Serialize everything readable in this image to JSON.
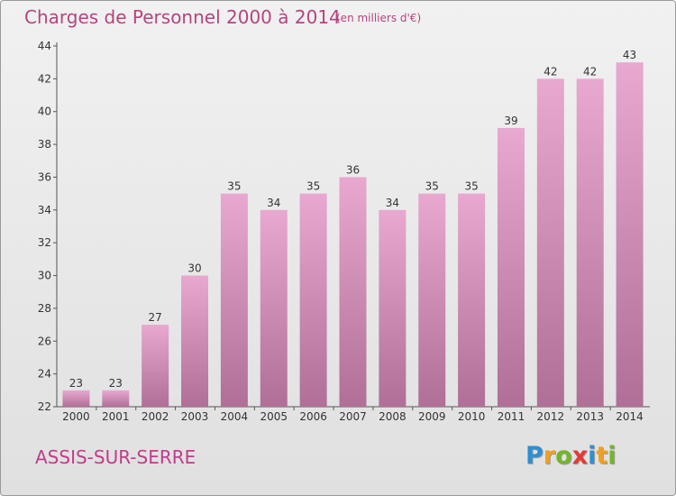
{
  "chart_data": {
    "type": "bar",
    "title": "Charges de Personnel 2000 à 2014",
    "subtitle": "(en milliers d'€)",
    "categories": [
      "2000",
      "2001",
      "2002",
      "2003",
      "2004",
      "2005",
      "2006",
      "2007",
      "2008",
      "2009",
      "2010",
      "2011",
      "2012",
      "2013",
      "2014"
    ],
    "values": [
      23,
      23,
      27,
      30,
      35,
      34,
      35,
      36,
      34,
      35,
      35,
      39,
      42,
      42,
      43
    ],
    "ylim": [
      22,
      44
    ],
    "yticks": [
      22,
      24,
      26,
      28,
      30,
      32,
      34,
      36,
      38,
      40,
      42,
      44
    ],
    "grid": false,
    "legend": "none",
    "bar_color_top": "#e8a8d0",
    "bar_color_bottom": "#b06f97"
  },
  "footer": {
    "commune": "ASSIS-SUR-SERRE",
    "logo_letters": [
      {
        "ch": "P",
        "color": "#2e8fd1"
      },
      {
        "ch": "r",
        "color": "#f0a020"
      },
      {
        "ch": "o",
        "color": "#74b52b"
      },
      {
        "ch": "x",
        "color": "#e53935"
      },
      {
        "ch": "i",
        "color": "#2e8fd1"
      },
      {
        "ch": "t",
        "color": "#f0a020"
      },
      {
        "ch": "i",
        "color": "#74b52b"
      }
    ]
  }
}
